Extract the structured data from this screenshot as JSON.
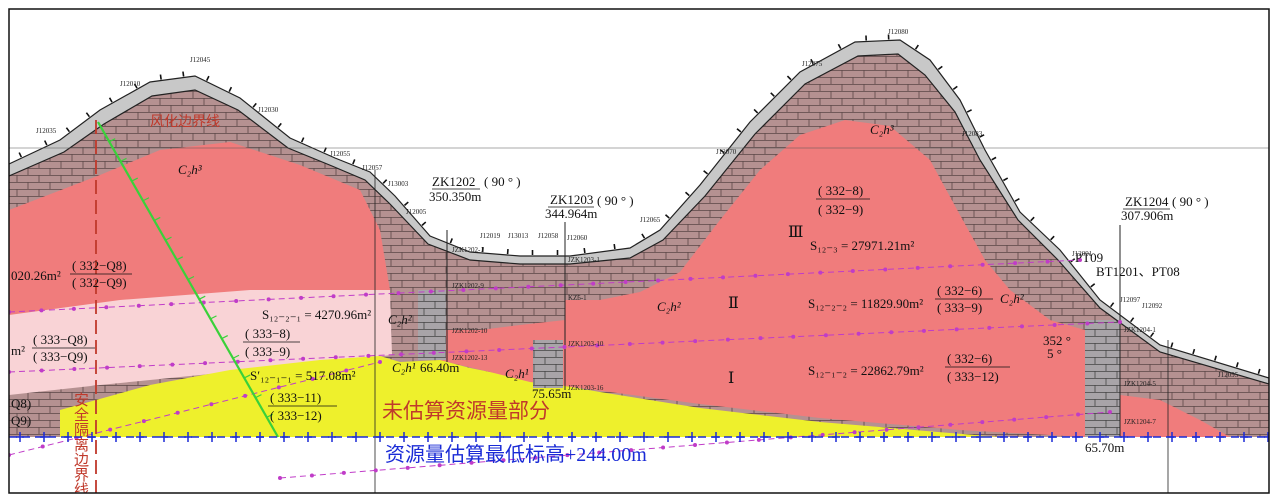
{
  "labels": {
    "weathering_line": "风化边界线",
    "safety_line": "安全隔离边界线",
    "not_estimated": "未估算资源量部分",
    "min_elevation": "资源量估算最低标高+244.00m"
  },
  "boreholes": [
    {
      "id": "ZK1202",
      "depth": "350.350m",
      "angle": "( 90 ° )"
    },
    {
      "id": "ZK1203",
      "depth": "344.964m",
      "angle": "( 90 ° )"
    },
    {
      "id": "ZK1204",
      "depth": "307.906m",
      "angle": "( 90 ° )"
    }
  ],
  "blocks": {
    "left_grade": {
      "num": "( 332−Q8)",
      "den": "( 332−Q9)"
    },
    "left_area": "020.26m²",
    "left2": {
      "num": "( 333−Q8)",
      "den": "( 333−Q9)"
    },
    "left2_m": "m²",
    "left3": {
      "num": "Q8)",
      "den": "Q9)"
    },
    "s1221": "S₁₂₋₂₋₁ = 4270.96m²",
    "mid_grade": {
      "num": "( 333−8)",
      "den": "( 333−9)"
    },
    "s1211": "S′₁₂₋₁₋₁ = 517.08m²",
    "low_grade": {
      "num": "( 333−11)",
      "den": "( 333−12)"
    },
    "top_grade": {
      "num": "( 332−8)",
      "den": "( 332−9)"
    },
    "roman3": "Ⅲ",
    "s123": "S₁₂₋₃ = 27971.21m²",
    "roman2": "Ⅱ",
    "s1222": "S₁₂₋₂₋₂ = 11829.90m²",
    "grade2": {
      "num": "( 332−6)",
      "den": "( 333−9)"
    },
    "roman1": "Ⅰ",
    "s1212": "S₁₂₋₁₋₂ = 22862.79m²",
    "grade1": {
      "num": "( 332−6)",
      "den": "( 333−12)"
    },
    "dip_a": "352 °",
    "dip_b": "5 °"
  },
  "strata": [
    "C₂h³",
    "C₂h³",
    "C₂h²",
    "C₂h²",
    "C₂h²",
    "C₂h¹",
    "C₂h¹"
  ],
  "depths": [
    "66.40m",
    "75.65m",
    "65.70m"
  ],
  "points": [
    "J12045",
    "J12010",
    "J12030",
    "J12035",
    "J12055",
    "J12057",
    "J13003",
    "J12005",
    "J12019",
    "J13013",
    "J12058",
    "J12060",
    "J12065",
    "J12070",
    "J12075",
    "J12080",
    "J12083",
    "J12091",
    "J12097",
    "J12092",
    "J12095"
  ],
  "trench": {
    "pt09": "PT09",
    "bt": "BT1201、PT08"
  },
  "sample_labels": [
    "JZK1202-1",
    "JZK1202-9",
    "JZK1202-10",
    "JZK1202-13",
    "JZK1203-1",
    "KZ5-1",
    "JZK1203-10",
    "JZK1203-16",
    "JZK1204-1",
    "JZK1204-5",
    "JZK1204-7"
  ]
}
